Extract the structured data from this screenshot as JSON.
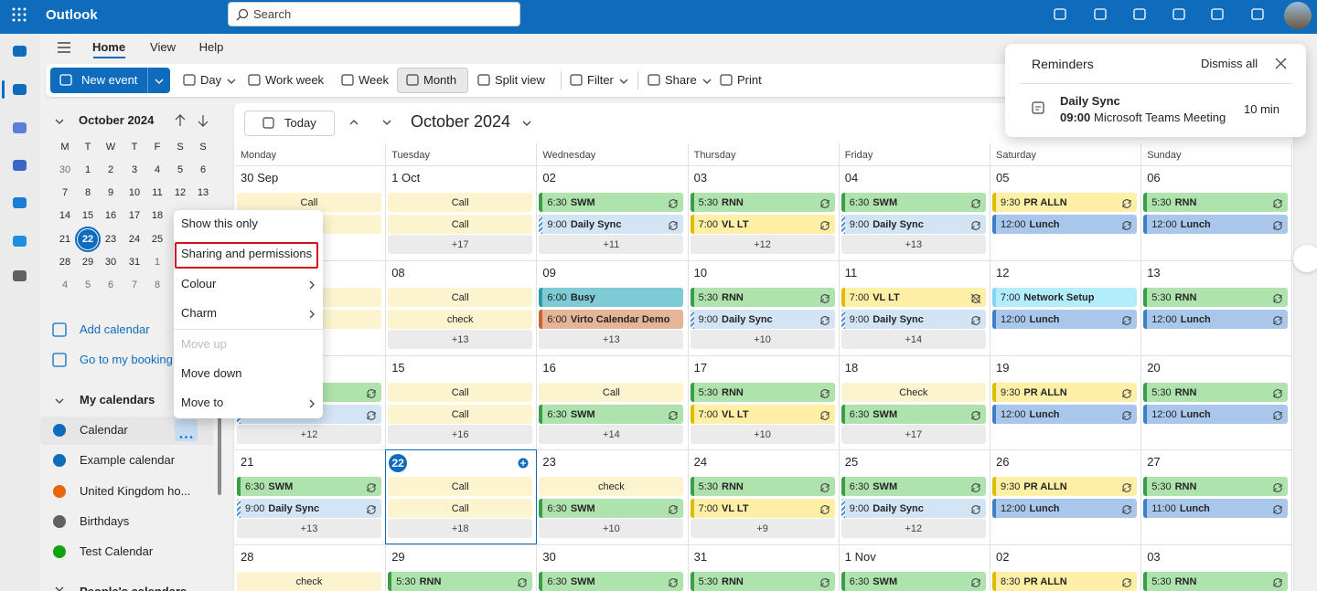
{
  "app_bar": {
    "app_name": "Outlook",
    "search_placeholder": "Search"
  },
  "tabs": [
    "Home",
    "View",
    "Help"
  ],
  "toolbar": [
    "New event",
    "Day",
    "Work week",
    "Week",
    "Month",
    "Split view",
    "Filter",
    "Share",
    "Print"
  ],
  "mini_calendar": {
    "title": "October 2024",
    "weekdays": [
      "M",
      "T",
      "W",
      "T",
      "F",
      "S",
      "S"
    ],
    "weeks": [
      [
        "30",
        "1",
        "2",
        "3",
        "4",
        "5",
        "6"
      ],
      [
        "7",
        "8",
        "9",
        "10",
        "11",
        "12",
        "13"
      ],
      [
        "14",
        "15",
        "16",
        "17",
        "18"
      ],
      [
        "21",
        "22",
        "23",
        "24",
        "25"
      ],
      [
        "28",
        "29",
        "30",
        "31",
        "1"
      ],
      [
        "4",
        "5",
        "6",
        "7",
        "8"
      ]
    ]
  },
  "links": [
    "Add calendar",
    "Go to my booking"
  ],
  "my_calendars": {
    "title": "My calendars",
    "items": [
      {
        "name": "Calendar",
        "color": "#0f6cbd"
      },
      {
        "name": "Example calendar",
        "color": "#0f6cbd"
      },
      {
        "name": "United Kingdom ho...",
        "color": "#e8650a"
      },
      {
        "name": "Birthdays",
        "color": "#616161"
      },
      {
        "name": "Test Calendar",
        "color": "#13a10e"
      }
    ]
  },
  "peoples_calendars": "People's calendars",
  "context_menu": [
    "Show this only",
    "Sharing and permissions",
    "Colour",
    "Charm",
    "Move up",
    "Move down",
    "Move to"
  ],
  "calendar": {
    "today_button": "Today",
    "title": "October 2024",
    "weekdays": [
      "Monday",
      "Tuesday",
      "Wednesday",
      "Thursday",
      "Friday",
      "Saturday",
      "Sunday"
    ],
    "weeks": [
      {
        "days": [
          {
            "date": "30 Sep",
            "events": [
              {
                "title": "Call",
                "color": "pale"
              },
              {
                "color": "pale"
              }
            ]
          },
          {
            "date": "1 Oct",
            "events": [
              {
                "title": "Call",
                "color": "pale"
              },
              {
                "title": "Call",
                "color": "pale"
              }
            ],
            "more": "+17"
          },
          {
            "date": "02",
            "events": [
              {
                "time": "6:30",
                "title": "SWM",
                "color": "green",
                "recurring": true
              },
              {
                "time": "9:00",
                "title": "Daily Sync",
                "color": "blue",
                "recurring": true
              }
            ],
            "more": "+11"
          },
          {
            "date": "03",
            "events": [
              {
                "time": "5:30",
                "title": "RNN",
                "color": "green",
                "recurring": true
              },
              {
                "time": "7:00",
                "title": "VL LT",
                "color": "yellow",
                "recurring": true
              }
            ],
            "more": "+12"
          },
          {
            "date": "04",
            "events": [
              {
                "time": "6:30",
                "title": "SWM",
                "color": "green",
                "recurring": true
              },
              {
                "time": "9:00",
                "title": "Daily Sync",
                "color": "blue",
                "recurring": true
              }
            ],
            "more": "+13"
          },
          {
            "date": "05",
            "events": [
              {
                "time": "9:30",
                "title": "PR ALLN",
                "color": "yellow",
                "recurring": true
              },
              {
                "time": "12:00",
                "title": "Lunch",
                "color": "lunch",
                "recurring": true
              }
            ]
          },
          {
            "date": "06",
            "events": [
              {
                "time": "5:30",
                "title": "RNN",
                "color": "green",
                "recurring": true
              },
              {
                "time": "12:00",
                "title": "Lunch",
                "color": "lunch",
                "recurring": true
              }
            ]
          }
        ]
      },
      {
        "days": [
          {
            "date": null,
            "events": [
              {
                "color": "pale"
              },
              {
                "color": "pale"
              }
            ]
          },
          {
            "date": "08",
            "events": [
              {
                "title": "Call",
                "color": "pale"
              },
              {
                "title": "check",
                "color": "pale"
              }
            ],
            "more": "+13"
          },
          {
            "date": "09",
            "events": [
              {
                "time": "6:00",
                "title": "Busy",
                "color": "teal"
              },
              {
                "time": "6:00",
                "title": "Virto Calendar Demo",
                "color": "orange"
              }
            ],
            "more": "+13"
          },
          {
            "date": "10",
            "events": [
              {
                "time": "5:30",
                "title": "RNN",
                "color": "green",
                "recurring": true
              },
              {
                "time": "9:00",
                "title": "Daily Sync",
                "color": "blue",
                "recurring": true
              }
            ],
            "more": "+10"
          },
          {
            "date": "11",
            "events": [
              {
                "time": "7:00",
                "title": "VL LT",
                "color": "yellow"
              },
              {
                "time": "9:00",
                "title": "Daily Sync",
                "color": "blue",
                "recurring": true
              }
            ],
            "more": "+14"
          },
          {
            "date": "12",
            "events": [
              {
                "time": "7:00",
                "title": "Network Setup",
                "color": "cyan"
              },
              {
                "time": "12:00",
                "title": "Lunch",
                "color": "lunch",
                "recurring": true
              }
            ]
          },
          {
            "date": "13",
            "events": [
              {
                "time": "5:30",
                "title": "RNN",
                "color": "green",
                "recurring": true
              },
              {
                "time": "12:00",
                "title": "Lunch",
                "color": "lunch",
                "recurring": true
              }
            ]
          }
        ]
      },
      {
        "days": [
          {
            "date": null,
            "events": [
              {
                "color": "green",
                "recurring": true
              },
              {
                "color": "blue",
                "recurring": true
              }
            ],
            "more": "+12"
          },
          {
            "date": "15",
            "events": [
              {
                "title": "Call",
                "color": "pale"
              },
              {
                "title": "Call",
                "color": "pale"
              }
            ],
            "more": "+16"
          },
          {
            "date": "16",
            "events": [
              {
                "title": "Call",
                "color": "pale"
              },
              {
                "time": "6:30",
                "title": "SWM",
                "color": "green",
                "recurring": true
              }
            ],
            "more": "+14"
          },
          {
            "date": "17",
            "events": [
              {
                "time": "5:30",
                "title": "RNN",
                "color": "green",
                "recurring": true
              },
              {
                "time": "7:00",
                "title": "VL LT",
                "color": "yellow",
                "recurring": true
              }
            ],
            "more": "+10"
          },
          {
            "date": "18",
            "events": [
              {
                "title": "Check",
                "color": "pale"
              },
              {
                "time": "6:30",
                "title": "SWM",
                "color": "green",
                "recurring": true
              }
            ],
            "more": "+17"
          },
          {
            "date": "19",
            "events": [
              {
                "time": "9:30",
                "title": "PR ALLN",
                "color": "yellow",
                "recurring": true
              },
              {
                "time": "12:00",
                "title": "Lunch",
                "color": "lunch",
                "recurring": true
              }
            ]
          },
          {
            "date": "20",
            "events": [
              {
                "time": "5:30",
                "title": "RNN",
                "color": "green",
                "recurring": true
              },
              {
                "time": "12:00",
                "title": "Lunch",
                "color": "lunch",
                "recurring": true
              }
            ]
          }
        ]
      },
      {
        "days": [
          {
            "date": "21",
            "events": [
              {
                "time": "6:30",
                "title": "SWM",
                "color": "green",
                "recurring": true
              },
              {
                "time": "9:00",
                "title": "Daily Sync",
                "color": "blue",
                "recurring": true
              }
            ],
            "more": "+13"
          },
          {
            "date": "22",
            "today": true,
            "events": [
              {
                "title": "Call",
                "color": "pale"
              },
              {
                "title": "Call",
                "color": "pale"
              }
            ],
            "more": "+18"
          },
          {
            "date": "23",
            "events": [
              {
                "title": "check",
                "color": "pale"
              },
              {
                "time": "6:30",
                "title": "SWM",
                "color": "green",
                "recurring": true
              }
            ],
            "more": "+10"
          },
          {
            "date": "24",
            "events": [
              {
                "time": "5:30",
                "title": "RNN",
                "color": "green",
                "recurring": true
              },
              {
                "time": "7:00",
                "title": "VL LT",
                "color": "yellow",
                "recurring": true
              }
            ],
            "more": "+9"
          },
          {
            "date": "25",
            "events": [
              {
                "time": "6:30",
                "title": "SWM",
                "color": "green",
                "recurring": true
              },
              {
                "time": "9:00",
                "title": "Daily Sync",
                "color": "blue",
                "recurring": true
              }
            ],
            "more": "+12"
          },
          {
            "date": "26",
            "events": [
              {
                "time": "9:30",
                "title": "PR ALLN",
                "color": "yellow",
                "recurring": true
              },
              {
                "time": "12:00",
                "title": "Lunch",
                "color": "lunch",
                "recurring": true
              }
            ]
          },
          {
            "date": "27",
            "events": [
              {
                "time": "5:30",
                "title": "RNN",
                "color": "green",
                "recurring": true
              },
              {
                "time": "11:00",
                "title": "Lunch",
                "color": "lunch",
                "recurring": true
              }
            ]
          }
        ]
      },
      {
        "days": [
          {
            "date": "28",
            "events": [
              {
                "title": "check",
                "color": "pale"
              }
            ]
          },
          {
            "date": "29",
            "events": [
              {
                "time": "5:30",
                "title": "RNN",
                "color": "green",
                "recurring": true
              }
            ]
          },
          {
            "date": "30",
            "events": [
              {
                "time": "6:30",
                "title": "SWM",
                "color": "green",
                "recurring": true
              }
            ]
          },
          {
            "date": "31",
            "events": [
              {
                "time": "5:30",
                "title": "RNN",
                "color": "green",
                "recurring": true
              }
            ]
          },
          {
            "date": "1 Nov",
            "events": [
              {
                "time": "6:30",
                "title": "SWM",
                "color": "green",
                "recurring": true
              }
            ]
          },
          {
            "date": "02",
            "events": [
              {
                "time": "8:30",
                "title": "PR ALLN",
                "color": "yellow",
                "recurring": true
              }
            ]
          },
          {
            "date": "03",
            "events": [
              {
                "time": "5:30",
                "title": "RNN",
                "color": "green",
                "recurring": true
              }
            ]
          }
        ]
      }
    ]
  },
  "reminders": {
    "title": "Reminders",
    "dismiss_all": "Dismiss all",
    "event": {
      "title": "Daily Sync",
      "time": "09:00",
      "location": "Microsoft Teams Meeting",
      "due": "10 min"
    }
  }
}
